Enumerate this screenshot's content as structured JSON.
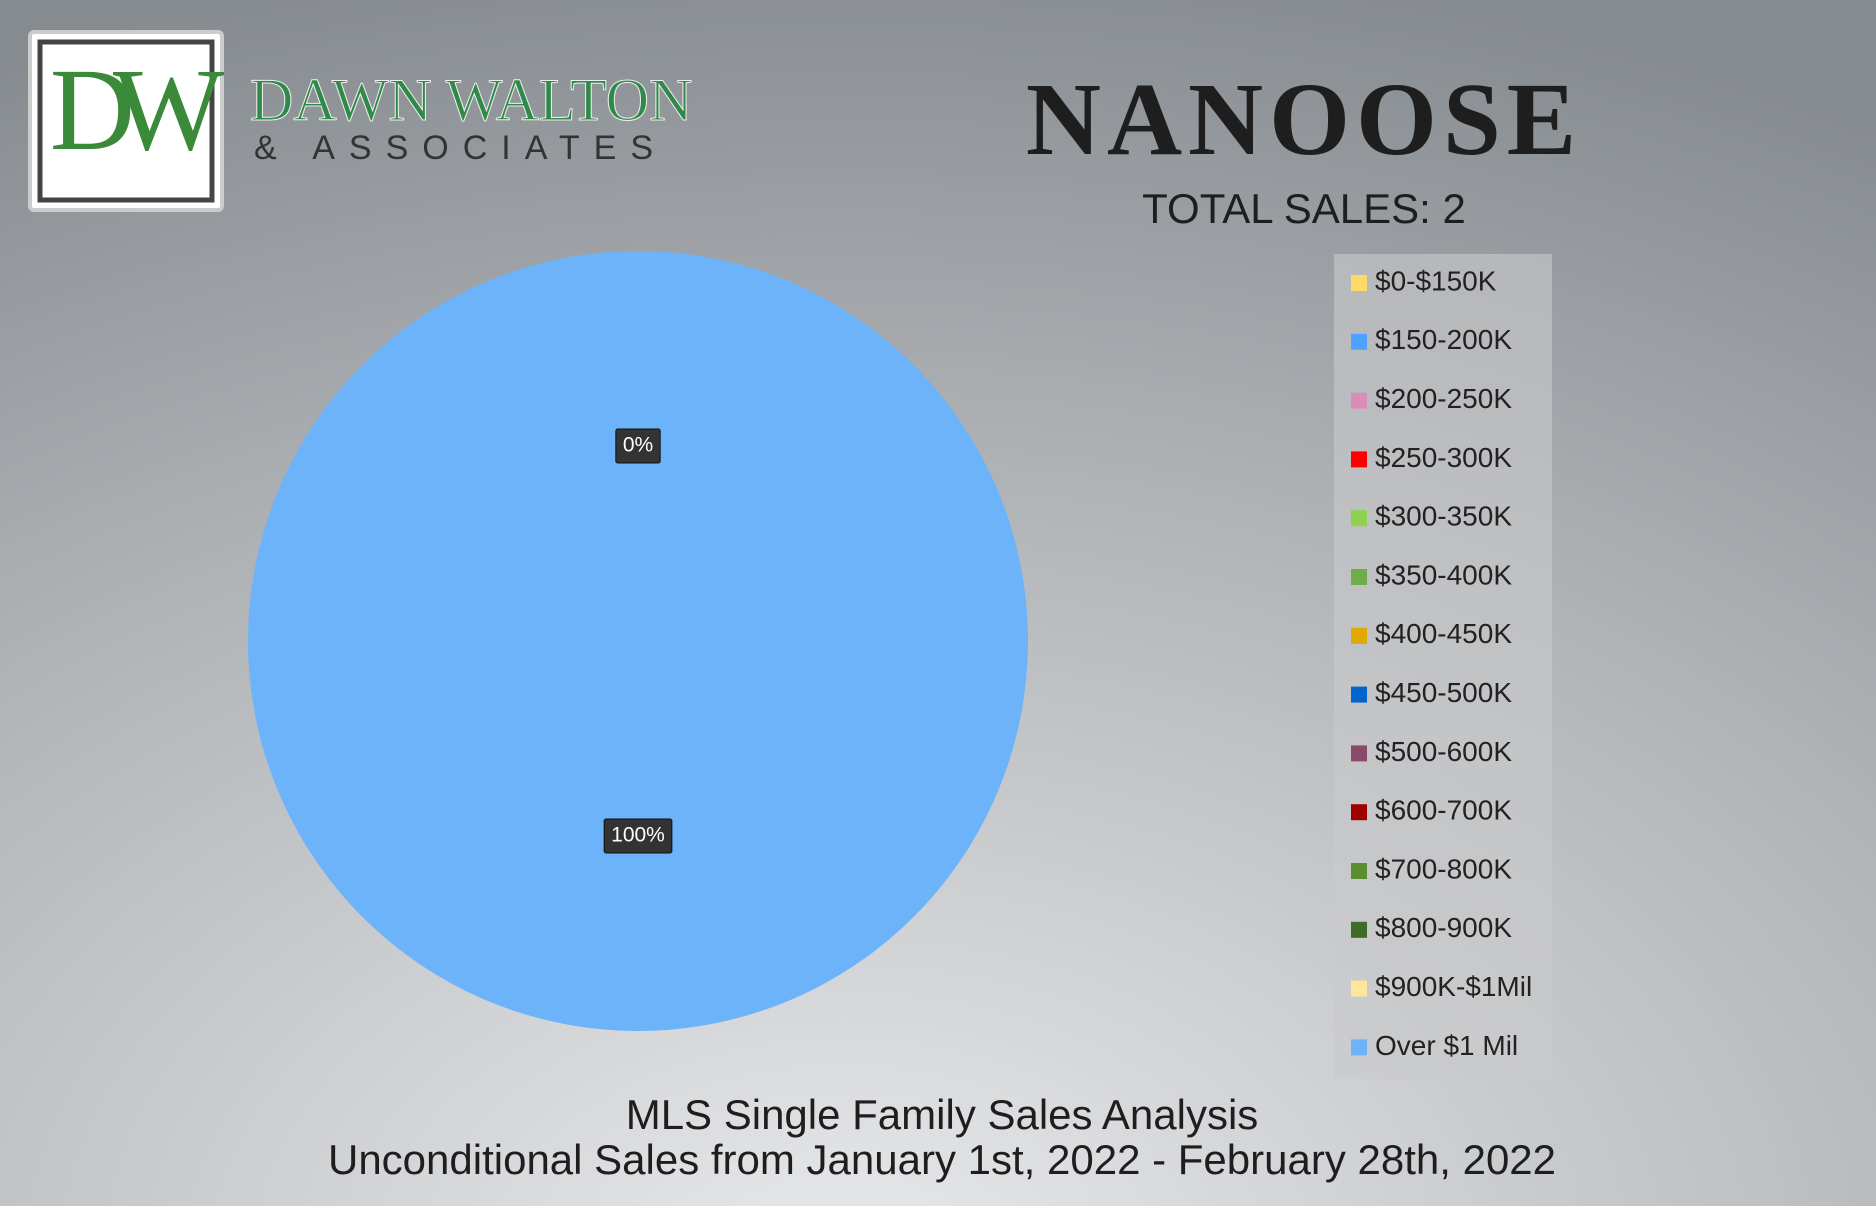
{
  "logo": {
    "initials": "DW",
    "name": "DAWN WALTON",
    "tagline": "& ASSOCIATES"
  },
  "chart_data": {
    "type": "pie",
    "title": "NANOOSE",
    "subtitle": "TOTAL SALES: 2",
    "categories": [
      "$0-$150K",
      "$150-200K",
      "$200-250K",
      "$250-300K",
      "$300-350K",
      "$350-400K",
      "$400-450K",
      "$450-500K",
      "$500-600K",
      "$600-700K",
      "$700-800K",
      "$800-900K",
      "$900K-$1Mil",
      "Over $1 Mil"
    ],
    "values": [
      0,
      0,
      0,
      0,
      0,
      0,
      0,
      0,
      0,
      0,
      0,
      0,
      0,
      100
    ],
    "value_labels": [
      null,
      null,
      null,
      null,
      null,
      null,
      null,
      null,
      null,
      null,
      null,
      null,
      "0%",
      "100%"
    ],
    "colors": [
      "#ffd966",
      "#4da3ff",
      "#d98fb5",
      "#ff0000",
      "#8fd14f",
      "#70ad47",
      "#e0a800",
      "#0066cc",
      "#8b4a6b",
      "#a00000",
      "#5a8f2e",
      "#3d6b2a",
      "#ffe699",
      "#6db3f9"
    ],
    "footer": [
      "MLS Single Family Sales Analysis",
      "Unconditional Sales from January 1st, 2022 - February 28th, 2022"
    ]
  }
}
